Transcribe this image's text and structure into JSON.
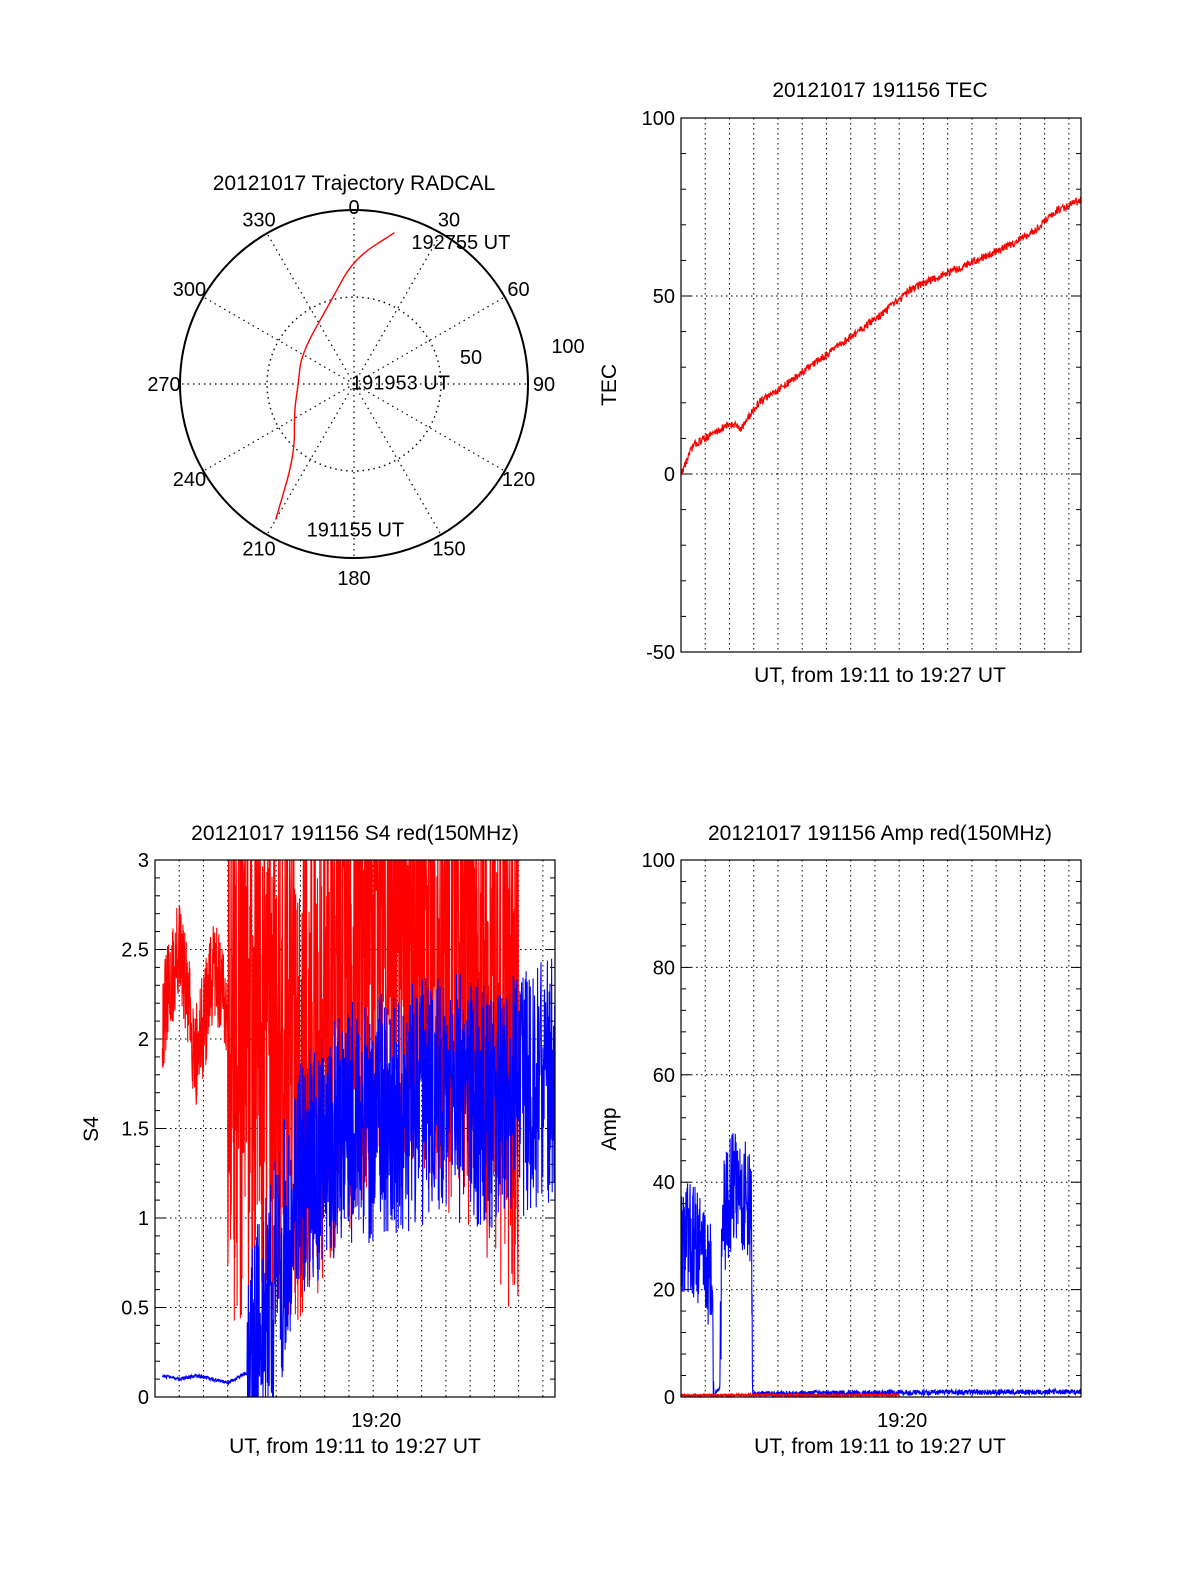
{
  "chart_data": [
    {
      "id": "polar",
      "type": "scatter",
      "title": "20121017 Trajectory RADCAL",
      "azimuth_labels": [
        "0",
        "30",
        "60",
        "90",
        "120",
        "150",
        "180",
        "210",
        "240",
        "270",
        "300",
        "330"
      ],
      "radial_labels": [
        "50",
        "100"
      ],
      "radial_range": [
        0,
        100
      ],
      "grid": true,
      "track": {
        "color": "#ff0000",
        "points": [
          {
            "az": 15,
            "el": 90
          },
          {
            "az": 0,
            "el": 72
          },
          {
            "az": 345,
            "el": 50
          },
          {
            "az": 300,
            "el": 35
          },
          {
            "az": 270,
            "el": 32
          },
          {
            "az": 245,
            "el": 38
          },
          {
            "az": 220,
            "el": 53
          },
          {
            "az": 210,
            "el": 90
          }
        ]
      },
      "annotations": [
        {
          "text": "192755 UT",
          "az": 22,
          "el": 88
        },
        {
          "text": "191953 UT",
          "az": 300,
          "el": 2
        },
        {
          "text": "191155 UT",
          "az": 198,
          "el": 88
        }
      ]
    },
    {
      "id": "tec",
      "type": "line",
      "title": "20121017 191156 TEC",
      "xlabel": "UT, from 19:11 to 19:27 UT",
      "ylabel": "TEC",
      "xlim": [
        0,
        16.5
      ],
      "ylim": [
        -50,
        100
      ],
      "yticks": [
        "-50",
        "0",
        "50",
        "100"
      ],
      "grid": true,
      "series": [
        {
          "color": "#ff0000",
          "x": [
            0,
            0.5,
            1.2,
            2.0,
            2.5,
            3.2,
            4.5,
            6.5,
            7.5,
            8.5,
            9.5,
            10.5,
            11.5,
            12.5,
            13.5,
            14.5,
            15.5,
            16.5
          ],
          "y": [
            0,
            8,
            11,
            14,
            13,
            20,
            26,
            36,
            41,
            46,
            52,
            55,
            58,
            61,
            64,
            68,
            74,
            77
          ]
        }
      ]
    },
    {
      "id": "s4",
      "type": "line",
      "title": "20121017 191156 S4 red(150MHz)",
      "xlabel": "UT, from 19:11 to 19:27 UT",
      "ylabel": "S4",
      "xticks": [
        "19:20"
      ],
      "xlim": [
        0,
        16.5
      ],
      "ylim": [
        0,
        3
      ],
      "yticks": [
        "0",
        "0.5",
        "1",
        "1.5",
        "2",
        "2.5",
        "3"
      ],
      "grid": true,
      "series": [
        {
          "color": "#ff0000",
          "x": [
            0.3,
            1.0,
            1.7,
            2.5,
            3.3,
            6.0,
            10.0,
            15.0
          ],
          "y": [
            2.1,
            2.5,
            1.9,
            2.4,
            2.0,
            2.0,
            3.0,
            2.0
          ]
        },
        {
          "color": "#0000ff",
          "x": [
            0.3,
            1.0,
            1.7,
            3.0,
            4.0,
            6.0,
            8.0,
            10.0,
            12.0,
            14.0,
            16.5
          ],
          "y": [
            0.12,
            0.1,
            0.12,
            0.08,
            0.15,
            1.2,
            1.5,
            1.6,
            1.7,
            1.6,
            1.8
          ]
        }
      ]
    },
    {
      "id": "amp",
      "type": "line",
      "title": "20121017 191156 Amp red(150MHz)",
      "xlabel": "UT, from 19:11 to 19:27 UT",
      "ylabel": "Amp",
      "xticks": [
        "19:20"
      ],
      "xlim": [
        0,
        16.5
      ],
      "ylim": [
        0,
        100
      ],
      "yticks": [
        "0",
        "20",
        "40",
        "60",
        "80",
        "100"
      ],
      "grid": true,
      "series": [
        {
          "color": "#0000ff",
          "x": [
            0.0,
            0.9,
            1.3,
            1.35,
            1.6,
            1.7,
            2.2,
            2.9,
            2.95,
            4.0,
            8.0,
            12.0,
            16.5
          ],
          "y": [
            30,
            28,
            20,
            0,
            2,
            32,
            40,
            35,
            0.6,
            0.6,
            0.8,
            0.9,
            1.0
          ]
        },
        {
          "color": "#ff0000",
          "x": [
            0.0,
            3.0,
            6.0,
            9.0
          ],
          "y": [
            0.3,
            0.4,
            0.3,
            0.4
          ]
        }
      ]
    }
  ]
}
